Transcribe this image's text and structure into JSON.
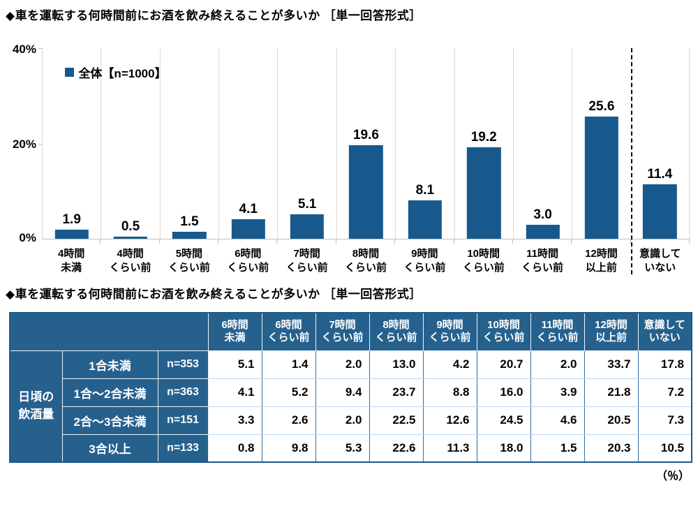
{
  "section1": {
    "title": "◆車を運転する何時間前にお酒を飲み終えることが多いか ［単一回答形式］"
  },
  "section2": {
    "title": "◆車を運転する何時間前にお酒を飲み終えることが多いか ［単一回答形式］"
  },
  "chart_data": {
    "type": "bar",
    "title": "車を運転する何時間前にお酒を飲み終えることが多いか（単一回答形式）",
    "legend": "全体【n=1000】",
    "legend_position": "top-left-inside",
    "categories": [
      "4時間\n未満",
      "4時間\nくらい前",
      "5時間\nくらい前",
      "6時間\nくらい前",
      "7時間\nくらい前",
      "8時間\nくらい前",
      "9時間\nくらい前",
      "10時間\nくらい前",
      "11時間\nくらい前",
      "12時間\n以上前",
      "意識して\nいない"
    ],
    "values": [
      1.9,
      0.5,
      1.5,
      4.1,
      5.1,
      19.6,
      8.1,
      19.2,
      3.0,
      25.6,
      11.4
    ],
    "unit": "%",
    "ylim": [
      0,
      40
    ],
    "yticks_labels": [
      "0%",
      "20%",
      "40%"
    ],
    "grid": "vertical-category-separators",
    "separator_before_last_category": "dashed",
    "bar_color": "#17598c"
  },
  "table": {
    "stub_header": "日頃の\n飲酒量",
    "columns": [
      "6時間\n未満",
      "6時間\nくらい前",
      "7時間\nくらい前",
      "8時間\nくらい前",
      "9時間\nくらい前",
      "10時間\nくらい前",
      "11時間\nくらい前",
      "12時間\n以上前",
      "意識して\nいない"
    ],
    "rows": [
      {
        "label": "1合未満",
        "n": "n=353",
        "values": [
          5.1,
          1.4,
          2.0,
          13.0,
          4.2,
          20.7,
          2.0,
          33.7,
          17.8
        ]
      },
      {
        "label": "1合～2合未満",
        "n": "n=363",
        "values": [
          4.1,
          5.2,
          9.4,
          23.7,
          8.8,
          16.0,
          3.9,
          21.8,
          7.2
        ]
      },
      {
        "label": "2合～3合未満",
        "n": "n=151",
        "values": [
          3.3,
          2.6,
          2.0,
          22.5,
          12.6,
          24.5,
          4.6,
          20.5,
          7.3
        ]
      },
      {
        "label": "3合以上",
        "n": "n=133",
        "values": [
          0.8,
          9.8,
          5.3,
          22.6,
          11.3,
          18.0,
          1.5,
          20.3,
          10.5
        ]
      }
    ],
    "unit_note": "（％）",
    "header_bg": "#26618e"
  }
}
